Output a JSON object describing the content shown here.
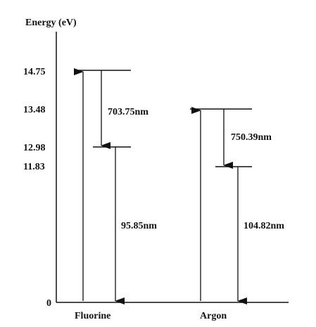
{
  "diagram": {
    "y_axis_label": "Energy (eV)",
    "origin_label": "0",
    "levels": [
      "14.75",
      "13.48",
      "12.98",
      "11.83"
    ],
    "atoms": [
      {
        "name": "Fluorine",
        "upper_level": 14.75,
        "lower_level": 12.98,
        "upper_transition": "703.75nm",
        "lower_transition": "95.85nm"
      },
      {
        "name": "Argon",
        "upper_level": 13.48,
        "lower_level": 11.83,
        "upper_transition": "750.39nm",
        "lower_transition": "104.82nm"
      }
    ]
  }
}
